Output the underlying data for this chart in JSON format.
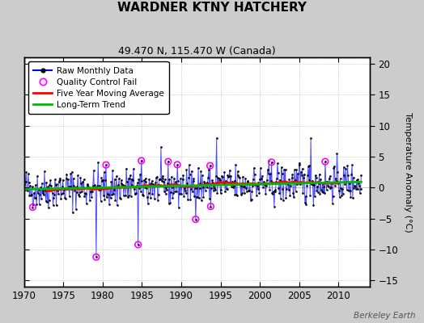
{
  "title": "WARDNER KTNY HATCHERY",
  "subtitle": "49.470 N, 115.470 W (Canada)",
  "ylabel": "Temperature Anomaly (°C)",
  "credit": "Berkeley Earth",
  "xlim": [
    1970,
    2014
  ],
  "ylim": [
    -16,
    21
  ],
  "yticks": [
    -15,
    -10,
    -5,
    0,
    5,
    10,
    15,
    20
  ],
  "xticks": [
    1970,
    1975,
    1980,
    1985,
    1990,
    1995,
    2000,
    2005,
    2010
  ],
  "raw_color": "#0000ff",
  "ma_color": "#ff0000",
  "trend_color": "#00bb00",
  "qc_color": "#ff00ff",
  "plot_bg": "#ffffff",
  "fig_bg": "#cccccc",
  "trend_slope": 0.028,
  "trend_intercept": -0.28,
  "seed": 42
}
